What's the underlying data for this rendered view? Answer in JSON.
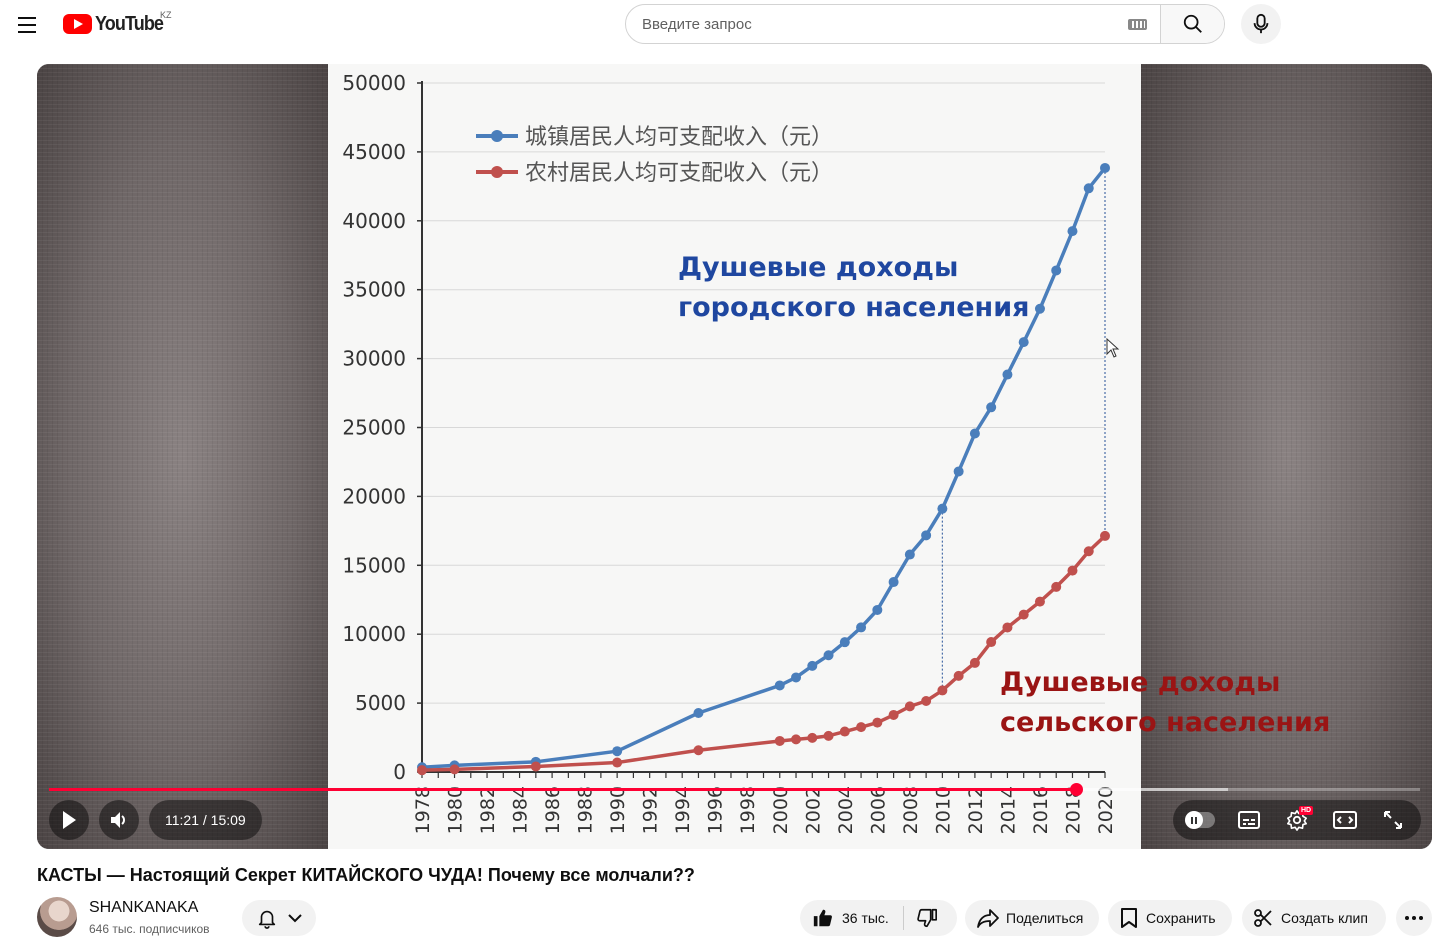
{
  "header": {
    "logo_text": "YouTube",
    "country_code": "KZ",
    "search_placeholder": "Введите запрос"
  },
  "player": {
    "current_time": "11:21",
    "duration": "15:09",
    "time_display": "11:21 / 15:09",
    "progress": 0.749,
    "buffered": 0.86,
    "hd_badge": "HD"
  },
  "chart_data": {
    "type": "line",
    "x": [
      "1978",
      "1980",
      "1985",
      "1990",
      "1995",
      "2000",
      "2001",
      "2002",
      "2003",
      "2004",
      "2005",
      "2006",
      "2007",
      "2008",
      "2009",
      "2010",
      "2011",
      "2012",
      "2013",
      "2014",
      "2015",
      "2016",
      "2017",
      "2018",
      "2019",
      "2020"
    ],
    "series": [
      {
        "name": "城镇居民人均可支配收入（元）",
        "color": "#4a7ebb",
        "values": [
          343,
          478,
          739,
          1510,
          4283,
          6280,
          6860,
          7703,
          8472,
          9422,
          10493,
          11759,
          13786,
          15781,
          17175,
          19109,
          21810,
          24565,
          26467,
          28844,
          31195,
          33616,
          36396,
          39251,
          42359,
          43834
        ]
      },
      {
        "name": "农村居民人均可支配收入（元）",
        "color": "#c0504d",
        "values": [
          134,
          191,
          398,
          686,
          1578,
          2253,
          2366,
          2476,
          2622,
          2936,
          3255,
          3587,
          4140,
          4761,
          5153,
          5919,
          6977,
          7917,
          9430,
          10489,
          11422,
          12363,
          13432,
          14617,
          16021,
          17131
        ]
      }
    ],
    "ylim": [
      0,
      50000
    ],
    "yticks": [
      "0",
      "5000",
      "10000",
      "15000",
      "20000",
      "25000",
      "30000",
      "35000",
      "40000",
      "45000",
      "50000"
    ],
    "xticks": [
      "1978",
      "1980",
      "1982",
      "1984",
      "1986",
      "1988",
      "1990",
      "1992",
      "1994",
      "1996",
      "1998",
      "2000",
      "2002",
      "2004",
      "2006",
      "2008",
      "2010",
      "2012",
      "2014",
      "2016",
      "2018",
      "2020"
    ],
    "legend_position": "top-left",
    "grid": true,
    "annotations": {
      "urban": [
        "Душевые доходы",
        "городского населения"
      ],
      "rural": [
        "Душевые доходы",
        "сельского населения"
      ]
    }
  },
  "video": {
    "title": "КАСТЫ — Настоящий Секрет КИТАЙСКОГО ЧУДА! Почему все молчали??",
    "channel_name": "SHANKANAKA",
    "subscribers": "646 тыс. подписчиков"
  },
  "actions": {
    "likes": "36 тыс.",
    "share": "Поделиться",
    "save": "Сохранить",
    "clip": "Создать клип"
  }
}
